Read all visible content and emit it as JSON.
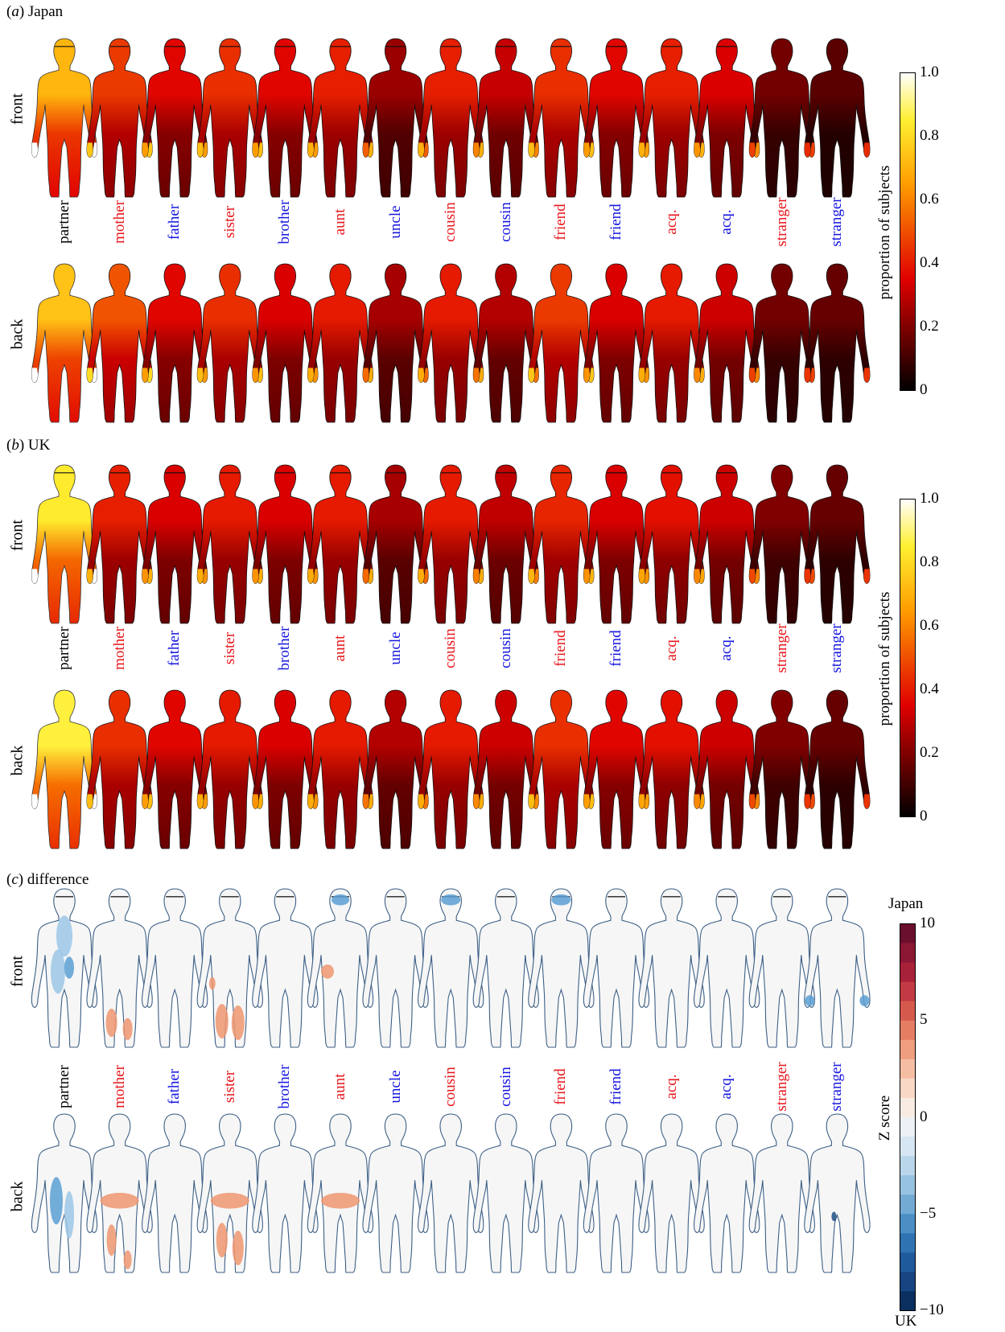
{
  "figure": {
    "panels": [
      {
        "id": "a",
        "letter": "a",
        "title": "Japan",
        "kind": "heat"
      },
      {
        "id": "b",
        "letter": "b",
        "title": "UK",
        "kind": "heat"
      },
      {
        "id": "c",
        "letter": "c",
        "title": "difference",
        "kind": "diff"
      }
    ],
    "row_labels": {
      "front": "front",
      "back": "back"
    },
    "persons": [
      {
        "label": "partner",
        "color": "#000000"
      },
      {
        "label": "mother",
        "color": "#e8161b"
      },
      {
        "label": "father",
        "color": "#1515e0"
      },
      {
        "label": "sister",
        "color": "#e8161b"
      },
      {
        "label": "brother",
        "color": "#1515e0"
      },
      {
        "label": "aunt",
        "color": "#e8161b"
      },
      {
        "label": "uncle",
        "color": "#1515e0"
      },
      {
        "label": "cousin",
        "color": "#e8161b"
      },
      {
        "label": "cousin",
        "color": "#1515e0"
      },
      {
        "label": "friend",
        "color": "#e8161b"
      },
      {
        "label": "friend",
        "color": "#1515e0"
      },
      {
        "label": "acq.",
        "color": "#e8161b"
      },
      {
        "label": "acq.",
        "color": "#1515e0"
      },
      {
        "label": "stranger",
        "color": "#e8161b"
      },
      {
        "label": "stranger",
        "color": "#1515e0"
      }
    ],
    "heat_colorbar": {
      "label": "proportion of subjects",
      "ticks": [
        "1.0",
        "0.8",
        "0.6",
        "0.4",
        "0.2",
        "0"
      ]
    },
    "diff_colorbar": {
      "label": "Z score",
      "top": "Japan",
      "bottom": "UK",
      "ticks": [
        "10",
        "5",
        "0",
        "−5",
        "−10"
      ]
    },
    "body_values": {
      "japan_front": [
        0.65,
        0.4,
        0.3,
        0.38,
        0.3,
        0.35,
        0.18,
        0.35,
        0.25,
        0.38,
        0.3,
        0.35,
        0.28,
        0.12,
        0.08
      ],
      "japan_back": [
        0.68,
        0.45,
        0.3,
        0.38,
        0.28,
        0.34,
        0.2,
        0.34,
        0.22,
        0.4,
        0.28,
        0.34,
        0.26,
        0.12,
        0.1
      ],
      "uk_front": [
        0.78,
        0.35,
        0.28,
        0.34,
        0.28,
        0.34,
        0.2,
        0.34,
        0.24,
        0.36,
        0.28,
        0.32,
        0.26,
        0.14,
        0.1
      ],
      "uk_back": [
        0.8,
        0.38,
        0.3,
        0.34,
        0.28,
        0.34,
        0.22,
        0.34,
        0.26,
        0.38,
        0.3,
        0.32,
        0.26,
        0.14,
        0.1
      ]
    }
  }
}
